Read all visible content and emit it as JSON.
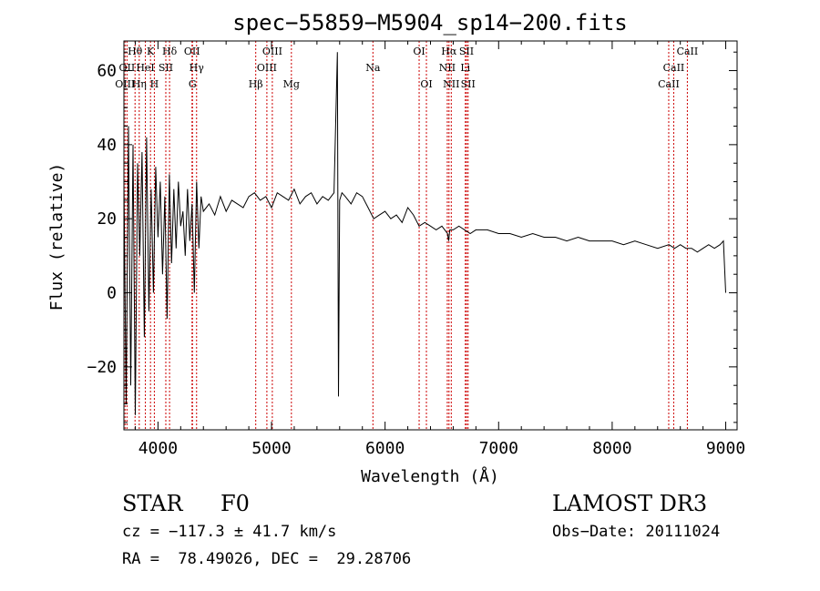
{
  "chart_data": {
    "type": "line",
    "title": "spec−55859−M5904_sp14−200.fits",
    "xlabel": "Wavelength (Å)",
    "ylabel": "Flux (relative)",
    "xlim": [
      3700,
      9100
    ],
    "ylim": [
      -37,
      68
    ],
    "x_ticks": [
      4000,
      5000,
      6000,
      7000,
      8000,
      9000
    ],
    "x_tick_labels": [
      "4000",
      "5000",
      "6000",
      "7000",
      "8000",
      "9000"
    ],
    "y_ticks": [
      -20,
      0,
      20,
      40,
      60
    ],
    "y_tick_labels": [
      "−20",
      "0",
      "20",
      "40",
      "60"
    ],
    "series": [
      {
        "name": "flux",
        "x": [
          3700,
          3720,
          3740,
          3760,
          3780,
          3800,
          3820,
          3840,
          3860,
          3880,
          3900,
          3920,
          3940,
          3960,
          3980,
          4000,
          4020,
          4040,
          4060,
          4080,
          4100,
          4120,
          4140,
          4160,
          4180,
          4200,
          4220,
          4240,
          4260,
          4280,
          4300,
          4320,
          4340,
          4360,
          4380,
          4400,
          4450,
          4500,
          4550,
          4600,
          4650,
          4700,
          4750,
          4800,
          4850,
          4900,
          4950,
          5000,
          5050,
          5100,
          5150,
          5200,
          5250,
          5300,
          5350,
          5400,
          5450,
          5500,
          5550,
          5580,
          5590,
          5600,
          5620,
          5650,
          5700,
          5750,
          5800,
          5850,
          5900,
          5950,
          6000,
          6050,
          6100,
          6150,
          6200,
          6250,
          6300,
          6350,
          6400,
          6450,
          6500,
          6550,
          6560,
          6570,
          6600,
          6650,
          6700,
          6750,
          6800,
          6900,
          7000,
          7100,
          7200,
          7300,
          7400,
          7500,
          7600,
          7700,
          7800,
          7900,
          8000,
          8100,
          8200,
          8300,
          8400,
          8500,
          8550,
          8600,
          8650,
          8700,
          8750,
          8800,
          8850,
          8900,
          8950,
          8980,
          9000
        ],
        "y": [
          30,
          -30,
          45,
          -25,
          40,
          -33,
          35,
          10,
          38,
          -12,
          42,
          -5,
          28,
          0,
          34,
          15,
          30,
          5,
          26,
          -7,
          32,
          8,
          28,
          12,
          30,
          18,
          22,
          10,
          28,
          14,
          24,
          0,
          30,
          12,
          26,
          22,
          24,
          21,
          26,
          22,
          25,
          24,
          23,
          26,
          27,
          25,
          26,
          23,
          27,
          26,
          25,
          28,
          24,
          26,
          27,
          24,
          26,
          25,
          27,
          65,
          -28,
          25,
          27,
          26,
          24,
          27,
          26,
          23,
          20,
          21,
          22,
          20,
          21,
          19,
          23,
          21,
          18,
          19,
          18,
          17,
          18,
          16,
          14,
          17,
          17,
          18,
          17,
          16,
          17,
          17,
          16,
          16,
          15,
          16,
          15,
          15,
          14,
          15,
          14,
          14,
          14,
          13,
          14,
          13,
          12,
          13,
          12,
          13,
          12,
          12,
          11,
          12,
          13,
          12,
          13,
          14,
          0
        ]
      }
    ],
    "annotations": [
      {
        "label": "Hθ",
        "x": 3798,
        "row": 0
      },
      {
        "label": "K",
        "x": 3934,
        "row": 0
      },
      {
        "label": "Hδ",
        "x": 4102,
        "row": 0
      },
      {
        "label": "OII",
        "x": 4300,
        "row": 0
      },
      {
        "label": "OIII",
        "x": 5007,
        "row": 0
      },
      {
        "label": "OI",
        "x": 6300,
        "row": 0
      },
      {
        "label": "Hα",
        "x": 6563,
        "row": 0
      },
      {
        "label": "SII",
        "x": 6717,
        "row": 0
      },
      {
        "label": "CaII",
        "x": 8662,
        "row": 0
      },
      {
        "label": "OII",
        "x": 3727,
        "row": 1
      },
      {
        "label": "HeI",
        "x": 3889,
        "row": 1
      },
      {
        "label": "SII",
        "x": 4069,
        "row": 1
      },
      {
        "label": "Hγ",
        "x": 4340,
        "row": 1
      },
      {
        "label": "OIII",
        "x": 4959,
        "row": 1
      },
      {
        "label": "Na",
        "x": 5893,
        "row": 1
      },
      {
        "label": "NII",
        "x": 6548,
        "row": 1
      },
      {
        "label": "Li",
        "x": 6707,
        "row": 1
      },
      {
        "label": "CaII",
        "x": 8542,
        "row": 1
      },
      {
        "label": "OIII",
        "x": 3710,
        "row": 2
      },
      {
        "label": "Hη",
        "x": 3835,
        "row": 2
      },
      {
        "label": "H",
        "x": 3968,
        "row": 2
      },
      {
        "label": "G",
        "x": 4304,
        "row": 2
      },
      {
        "label": "Hβ",
        "x": 4861,
        "row": 2
      },
      {
        "label": "Mg",
        "x": 5175,
        "row": 2
      },
      {
        "label": "OI",
        "x": 6364,
        "row": 2
      },
      {
        "label": "NII",
        "x": 6583,
        "row": 2
      },
      {
        "label": "SII",
        "x": 6731,
        "row": 2
      },
      {
        "label": "CaII",
        "x": 8498,
        "row": 2
      }
    ]
  },
  "info": {
    "object_class": "STAR",
    "subclass": "F0",
    "survey": "LAMOST DR3",
    "cz": "cz = −117.3 ± 41.7 km/s",
    "obs_date": "Obs−Date: 20111024",
    "coords": "RA =  78.49026, DEC =  29.28706"
  }
}
